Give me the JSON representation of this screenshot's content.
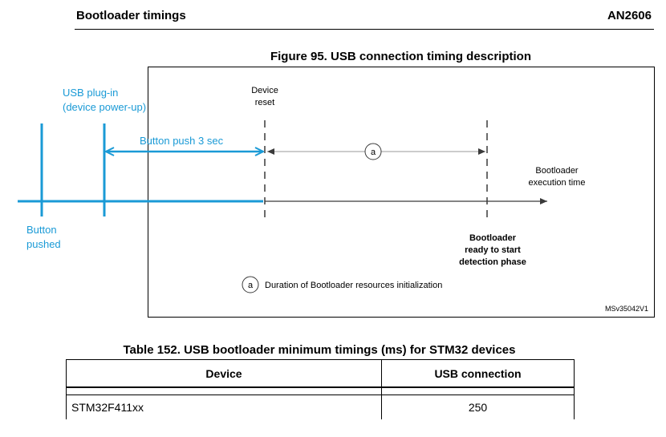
{
  "header": {
    "section_title": "Bootloader timings",
    "doc_id": "AN2606"
  },
  "figure": {
    "title": "Figure 95. USB connection timing description",
    "labels": {
      "usb_plugin_line1": "USB plug-in",
      "usb_plugin_line2": "(device power-up)",
      "button_push": "Button push 3 sec",
      "button_pushed_line1": "Button",
      "button_pushed_line2": "pushed",
      "device_reset_line1": "Device",
      "device_reset_line2": "reset",
      "marker_a": "a",
      "exec_time_line1": "Bootloader",
      "exec_time_line2": "execution time",
      "ready_line1": "Bootloader",
      "ready_line2": "ready to start",
      "ready_line3": "detection phase",
      "legend_a": "Duration of Bootloader resources initialization",
      "ref_code": "MSv35042V1"
    },
    "colors": {
      "annotation": "#1a9ad6",
      "diagram": "#3a3a3a"
    }
  },
  "table": {
    "title": "Table 152. USB bootloader minimum timings (ms) for STM32 devices",
    "columns": [
      "Device",
      "USB connection"
    ],
    "rows": [
      {
        "device": "STM32F411xx",
        "usb_connection": "250"
      }
    ]
  }
}
